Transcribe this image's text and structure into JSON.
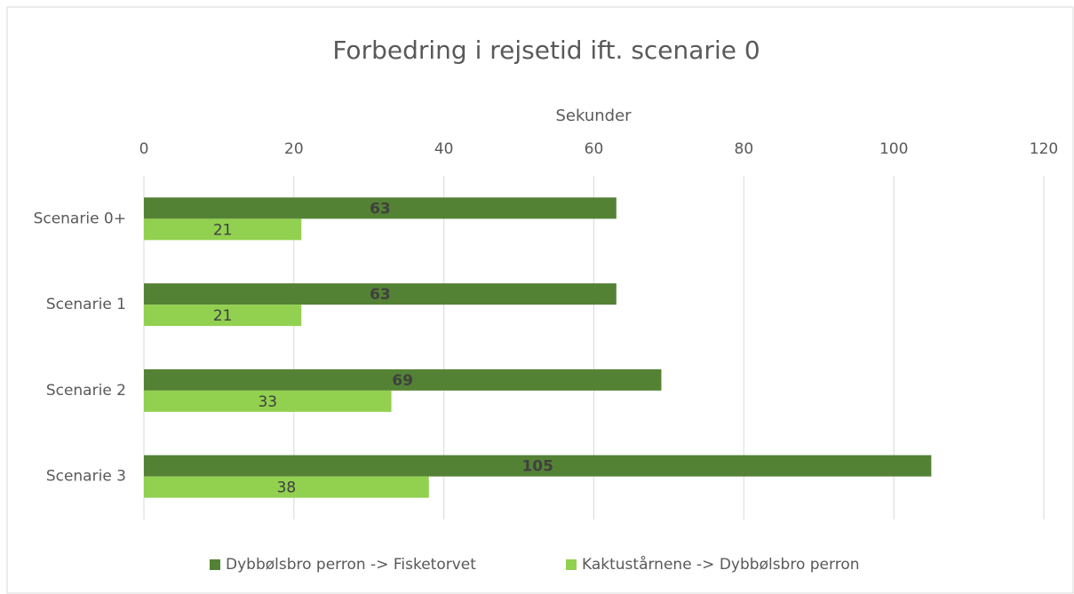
{
  "chart_data": {
    "type": "hbar",
    "title": "Forbedring i rejsetid ift. scenarie 0",
    "xlabel": "Sekunder",
    "categories": [
      "Scenarie 0+",
      "Scenarie 1",
      "Scenarie 2",
      "Scenarie 3"
    ],
    "series": [
      {
        "name": "Dybbølsbro perron -> Fisketorvet",
        "color": "#548235",
        "values": [
          63,
          63,
          69,
          105
        ]
      },
      {
        "name": "Kaktustårnene -> Dybbølsbro perron",
        "color": "#92d050",
        "values": [
          21,
          21,
          33,
          38
        ]
      }
    ],
    "xlim": [
      0,
      120
    ],
    "xticks": [
      0,
      20,
      40,
      60,
      80,
      100,
      120
    ],
    "grid": true,
    "legend": "bottom"
  }
}
